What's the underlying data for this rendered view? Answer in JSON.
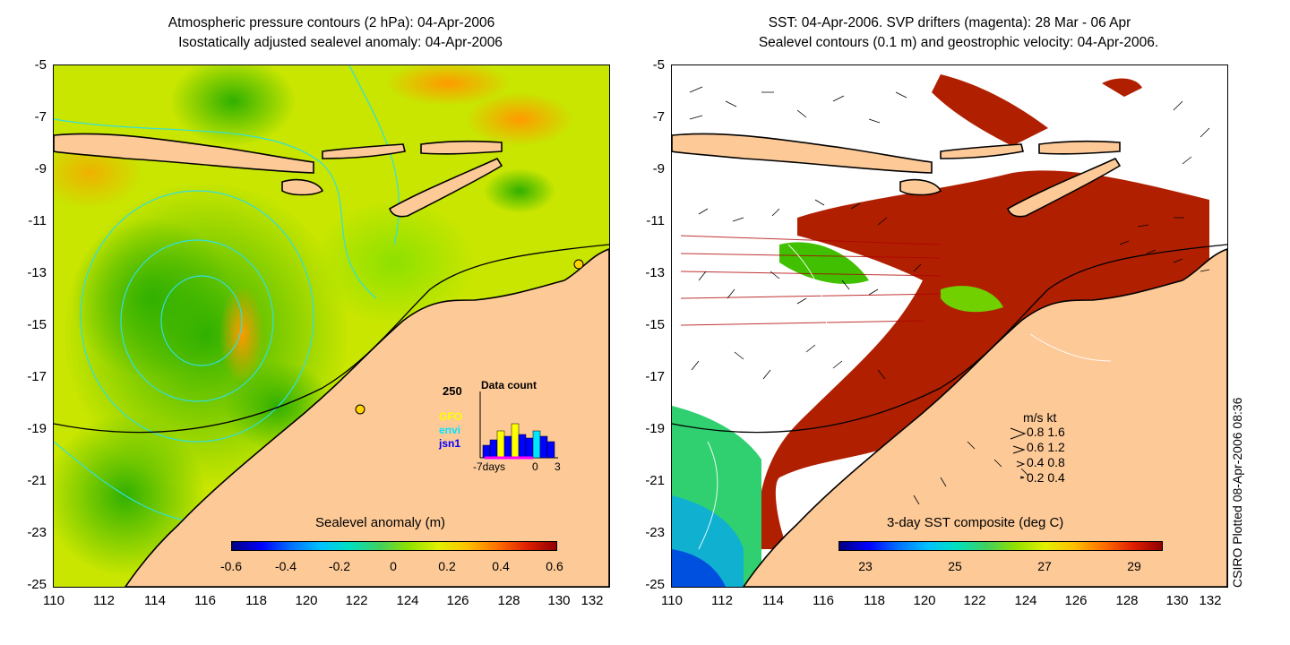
{
  "left_panel": {
    "title_line1": "Atmospheric pressure contours (2 hPa): 04-Apr-2006",
    "title_line2": "Isostatically adjusted sealevel anomaly: 04-Apr-2006",
    "colorbar_title": "Sealevel anomaly (m)",
    "colorbar_ticks": [
      "-0.6",
      "-0.4",
      "-0.2",
      "0",
      "0.2",
      "0.4",
      "0.6"
    ],
    "colorbar_range": [
      -0.6,
      0.6
    ],
    "data_count": {
      "title": "Data count",
      "ymax_label": "250",
      "x_labels": [
        "-7days",
        "0",
        "3"
      ],
      "legend": [
        {
          "name": "GFO",
          "color": "#ffff00"
        },
        {
          "name": "envi",
          "color": "#00e5ff"
        },
        {
          "name": "jsn1",
          "color": "#0000ff"
        }
      ]
    }
  },
  "right_panel": {
    "title_line1": "SST: 04-Apr-2006. SVP drifters (magenta): 28 Mar - 06 Apr",
    "title_line2": "Sealevel contours (0.1 m) and geostrophic velocity: 04-Apr-2006.",
    "colorbar_title": "3-day SST composite (deg C)",
    "colorbar_ticks": [
      "23",
      "25",
      "27",
      "29"
    ],
    "colorbar_range": [
      22.3,
      29.5
    ],
    "velocity_legend": {
      "header": "m/s  kt",
      "rows": [
        "0.8  1.6",
        "0.6  1.2",
        "0.4  0.8",
        "0.2  0.4"
      ]
    },
    "credit": "CSIRO Plotted 08-Apr-2006 08:36"
  },
  "axes": {
    "x_ticks": [
      "110",
      "112",
      "114",
      "116",
      "118",
      "120",
      "122",
      "124",
      "126",
      "128",
      "130",
      "132"
    ],
    "y_ticks": [
      "-5",
      "-7",
      "-9",
      "-11",
      "-13",
      "-15",
      "-17",
      "-19",
      "-21",
      "-23",
      "-25"
    ],
    "lon_range": [
      110,
      132
    ],
    "lat_range": [
      -25,
      -5
    ]
  },
  "colors": {
    "land": "#fdc997",
    "coast": "#000000",
    "pressure_contour": "#30e0e0",
    "sealevel_contour": "#ffffff",
    "drifter": "#ff00ff"
  }
}
